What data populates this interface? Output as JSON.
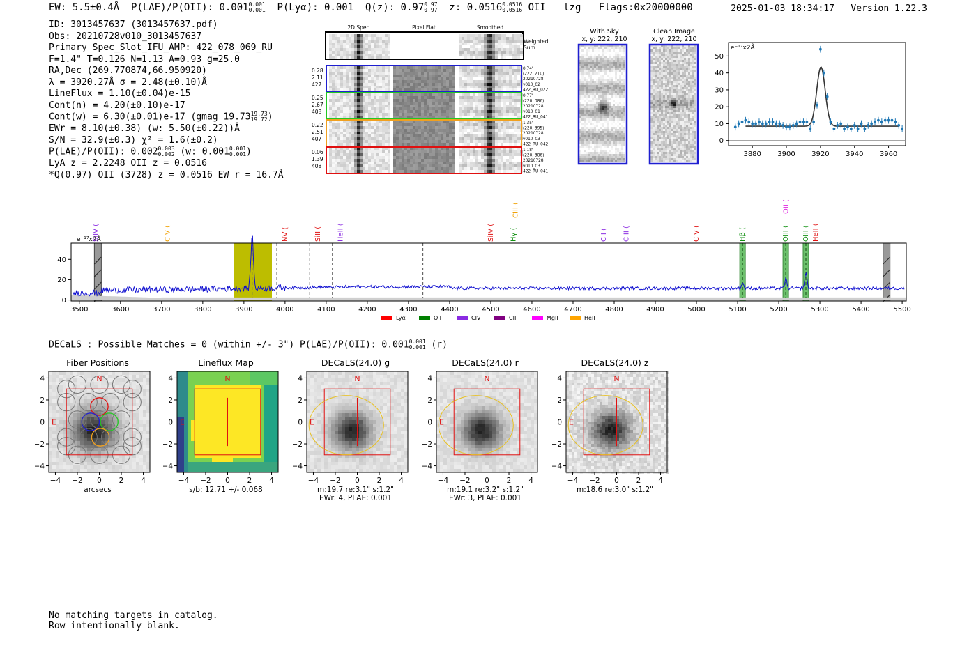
{
  "header": {
    "ew": "EW: 5.5±0.4Å",
    "plae": "P(LAE)/P(OII): 0.001",
    "plae_sup": "0.001",
    "plae_sub": "0.001",
    "plya": "P(Lyα): 0.001",
    "q": "Q(z): 0.97",
    "q_sup": "0.97",
    "q_sub": "0.97",
    "z": "z: 0.0516",
    "z_sup": "0.0516",
    "z_sub": "0.0516",
    "line": "OII",
    "lzg": "lzg",
    "flags": "Flags:0x20000000",
    "timestamp": "2025-01-03 18:34:17",
    "version": "Version 1.22.3"
  },
  "info": {
    "id": "ID: 3013457637 (3013457637.pdf)",
    "obs": "Obs: 20210728v010_3013457637",
    "slot": "Primary Spec_Slot_IFU_AMP: 422_078_069_RU",
    "fparams": "F=1.4\"  T=0.126  N=1.13  A=0.93  g=25.0",
    "radec": "RA,Dec (269.770874,66.950920)",
    "lambda": "λ = 3920.27Å  σ = 2.48(±0.10)Å",
    "lineflux": "LineFlux = 1.10(±0.04)e-15",
    "contn": "Cont(n) = 4.20(±0.10)e-17",
    "contw": "Cont(w) = 6.30(±0.01)e-17 (gmag 19.73",
    "contw_sup": "19.73",
    "contw_sub": "19.72",
    "contw_end": ")",
    "ewr": "EWr = 8.10(±0.38) (w: 5.50(±0.22))Å",
    "sn": "S/N = 32.9(±0.3)  χ² = 1.6(±0.2)",
    "plae2": "P(LAE)/P(OII): 0.002",
    "plae2_sup": "0.003",
    "plae2_sub": "0.002",
    "plae2_w": "(w: 0.001",
    "plae2_w_sup": "0.001",
    "plae2_w_sub": "0.001",
    "plae2_end": ")",
    "lya": "LyA z = 2.2248   OII z = 0.0516",
    "qline": "*Q(0.97) OII (3728) z = 0.0516  EW r = 16.7Å"
  },
  "spec2d": {
    "col_titles": [
      "2D Spec",
      "Pixel Flat",
      "Smoothed"
    ],
    "weighted_label": "Weighted Sum",
    "rows": [
      {
        "left": [
          "0.28",
          "2.11",
          "427"
        ],
        "right": [
          "0.74\"",
          "(222, 210)",
          "20210728",
          "v010_02",
          "422_RU_022"
        ],
        "color": "#1f1fd0"
      },
      {
        "left": [
          "0.25",
          "2.67",
          "408"
        ],
        "right": [
          "0.77\"",
          "(220, 386)",
          "20210728",
          "v010_01",
          "422_RU_041"
        ],
        "color": "#22c822"
      },
      {
        "left": [
          "0.22",
          "2.51",
          "407"
        ],
        "right": [
          "1.35\"",
          "(220, 395)",
          "20210728",
          "v010_03",
          "422_RU_042"
        ],
        "color": "#f0a020"
      },
      {
        "left": [
          "0.06",
          "1.39",
          "408"
        ],
        "right": [
          "1.18\"",
          "(220, 386)",
          "20210728",
          "v010_03",
          "422_RU_041"
        ],
        "color": "#e01010"
      }
    ]
  },
  "sky": {
    "with_sky_title": "With Sky",
    "with_sky_sub": "x, y: 222, 210",
    "clean_title": "Clean Image",
    "clean_sub": "x, y: 222, 210"
  },
  "fit_plot": {
    "unit_label": "e⁻¹⁷x2Å",
    "xlim": [
      3866,
      3970
    ],
    "ylim": [
      -3,
      58
    ],
    "xticks": [
      "3880",
      "3900",
      "3920",
      "3940",
      "3960"
    ],
    "yticks": [
      "0",
      "10",
      "20",
      "30",
      "40",
      "50"
    ],
    "data_x": [
      3870,
      3872,
      3874,
      3876,
      3878,
      3880,
      3882,
      3884,
      3886,
      3888,
      3890,
      3892,
      3894,
      3896,
      3898,
      3900,
      3902,
      3904,
      3906,
      3908,
      3910,
      3912,
      3914,
      3916,
      3918,
      3920,
      3922,
      3924,
      3926,
      3928,
      3930,
      3932,
      3934,
      3936,
      3938,
      3940,
      3942,
      3944,
      3946,
      3948,
      3950,
      3952,
      3954,
      3956,
      3958,
      3960,
      3962,
      3964,
      3966,
      3968
    ],
    "data_y": [
      8,
      10,
      11,
      12,
      11,
      10,
      10,
      11,
      10,
      10,
      11,
      11,
      10,
      10,
      9,
      8,
      8,
      9,
      10,
      11,
      11,
      11,
      7,
      11,
      21,
      54,
      40,
      26,
      11,
      7,
      9,
      10,
      7,
      8,
      7,
      9,
      7,
      10,
      7,
      9,
      10,
      11,
      12,
      11,
      12,
      12,
      12,
      11,
      9,
      7
    ],
    "fit_center": 3920.3,
    "fit_sigma": 2.48,
    "fit_peak": 35,
    "fit_cont": 8.5
  },
  "chart_data": {
    "type": "line",
    "unit_label": "e⁻¹⁷x2Å",
    "xlim": [
      3480,
      5510
    ],
    "ylim": [
      -1,
      56
    ],
    "xticks": [
      "3500",
      "3600",
      "3700",
      "3800",
      "3900",
      "4000",
      "4100",
      "4200",
      "4300",
      "4400",
      "4500",
      "4600",
      "4700",
      "4800",
      "4900",
      "5000",
      "5100",
      "5200",
      "5300",
      "5400",
      "5500"
    ],
    "yticks": [
      "0",
      "20",
      "40"
    ],
    "line_labels": [
      {
        "name": "SiIV",
        "x": 3540,
        "color": "#8a2be2",
        "row": 0
      },
      {
        "name": "CIV",
        "x": 3715,
        "color": "#f0a000",
        "row": 0
      },
      {
        "name": "NV",
        "x": 4000,
        "color": "#e01010",
        "row": 0
      },
      {
        "name": "SiII",
        "x": 4080,
        "color": "#e01010",
        "row": 0
      },
      {
        "name": "HeII",
        "x": 4135,
        "color": "#8a2be2",
        "row": 0
      },
      {
        "name": "SiIV",
        "x": 4500,
        "color": "#e01010",
        "row": 0
      },
      {
        "name": "Hγ",
        "x": 4555,
        "color": "#109010",
        "row": 0
      },
      {
        "name": "CIII",
        "x": 4560,
        "color": "#f0a000",
        "row": 1
      },
      {
        "name": "CII",
        "x": 4775,
        "color": "#8a2be2",
        "row": 0
      },
      {
        "name": "CIII",
        "x": 4830,
        "color": "#8a2be2",
        "row": 0
      },
      {
        "name": "CIV",
        "x": 5000,
        "color": "#e01010",
        "row": 0
      },
      {
        "name": "Hβ",
        "x": 5112,
        "color": "#109010",
        "row": 0
      },
      {
        "name": "OIII",
        "x": 5217,
        "color": "#109010",
        "row": 0
      },
      {
        "name": "OII",
        "x": 5218,
        "color": "#e020e0",
        "row": 2
      },
      {
        "name": "OIII",
        "x": 5266,
        "color": "#109010",
        "row": 0
      },
      {
        "name": "HeII",
        "x": 5290,
        "color": "#e01010",
        "row": 0
      }
    ],
    "legend": [
      {
        "name": "Lyα",
        "color": "#ff0000"
      },
      {
        "name": "OII",
        "color": "#008000"
      },
      {
        "name": "CIV",
        "color": "#8a2be2"
      },
      {
        "name": "CIII",
        "color": "#800080"
      },
      {
        "name": "MgII",
        "color": "#ff00ff"
      },
      {
        "name": "HeII",
        "color": "#ffa500"
      }
    ],
    "highlight_band": [
      3875,
      3968
    ],
    "peak_x": 3920,
    "peak_y": 53,
    "dashed_lines": [
      3920,
      3980,
      4060,
      4115,
      4335
    ],
    "green_bands": [
      5112,
      5217,
      5266
    ],
    "hatched_bands": [
      3545,
      5462
    ],
    "green_peaks": [
      9,
      16,
      27
    ]
  },
  "decals": {
    "text": "DECaLS : Possible Matches = 0 (within +/- 3\")  P(LAE)/P(OII): 0.001",
    "sup": "0.001",
    "sub": "0.001",
    "end": "(r)",
    "panels": [
      {
        "title": "Fiber Positions",
        "cap1": "arcsecs",
        "cap2": ""
      },
      {
        "title": "Lineflux Map",
        "cap1": "s/b: 12.71 +/- 0.068",
        "cap2": ""
      },
      {
        "title": "DECaLS(24.0) g",
        "cap1": "m:19.7  re:3.1\"  s:1.2\"",
        "cap2": "EWr: 4, PLAE: 0.001"
      },
      {
        "title": "DECaLS(24.0) r",
        "cap1": "m:19.1  re:3.2\"  s:1.2\"",
        "cap2": "EWr: 3, PLAE: 0.001"
      },
      {
        "title": "DECaLS(24.0) z",
        "cap1": "m:18.6  re:3.0\"  s:1.2\"",
        "cap2": ""
      }
    ],
    "axis_ticks": [
      "4",
      "2",
      "0",
      "−2",
      "−4"
    ],
    "x_ticks": [
      "−4",
      "−2",
      "0",
      "2",
      "4"
    ],
    "compass_n": "N",
    "compass_e": "E"
  },
  "notes": {
    "line1": "No matching targets in catalog.",
    "line2": "Row intentionally blank."
  }
}
